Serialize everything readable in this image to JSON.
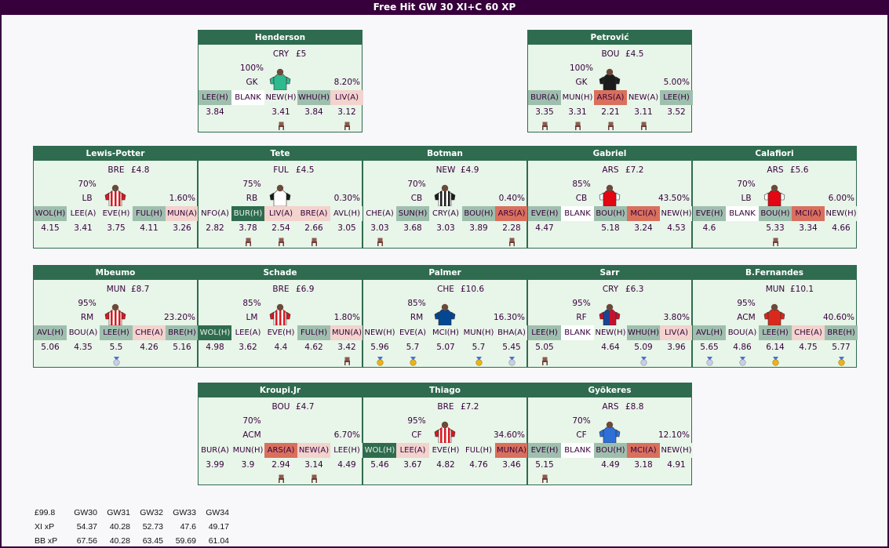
{
  "title": "Free Hit GW 30 XI+C 60 XP",
  "colors": {
    "header": "#37003c",
    "card_bg": "#e8f5e9",
    "card_header": "#2f6b4f",
    "fdr": {
      "1": "#2f6b4f",
      "2": "#9fbfae",
      "3": "#e8f5e9",
      "4": "#f2d3cd",
      "5": "#d8705d",
      "blank": "#ffffff"
    }
  },
  "rows": [
    {
      "players": [
        {
          "name": "Henderson",
          "club": "CRY",
          "price": "£5",
          "chance": "100%",
          "position": "GK",
          "ownership": "8.20%",
          "shirt": {
            "type": "gk",
            "main": "#2fb98f",
            "sleeve": "#2fb98f",
            "stripe": "#2fb98f"
          },
          "fixtures": [
            {
              "t": "LEE(H)",
              "d": "2"
            },
            {
              "t": "BLANK",
              "d": "blank"
            },
            {
              "t": "NEW(H)",
              "d": "3"
            },
            {
              "t": "WHU(H)",
              "d": "2"
            },
            {
              "t": "LIV(A)",
              "d": "4"
            }
          ],
          "xp": [
            "3.84",
            "",
            "3.41",
            "3.84",
            "3.12"
          ],
          "icons": [
            "",
            "",
            "chair-icon",
            "",
            "chair-icon"
          ]
        },
        {
          "name": "Petrović",
          "club": "BOU",
          "price": "£4.5",
          "chance": "100%",
          "position": "GK",
          "ownership": "5.00%",
          "shirt": {
            "type": "gk",
            "main": "#1c1c1c",
            "sleeve": "#1c1c1c",
            "stripe": "#1c1c1c"
          },
          "fixtures": [
            {
              "t": "BUR(A)",
              "d": "2"
            },
            {
              "t": "MUN(H)",
              "d": "3"
            },
            {
              "t": "ARS(A)",
              "d": "5"
            },
            {
              "t": "NEW(A)",
              "d": "3"
            },
            {
              "t": "LEE(H)",
              "d": "2"
            }
          ],
          "xp": [
            "3.35",
            "3.31",
            "2.21",
            "3.11",
            "3.52"
          ],
          "icons": [
            "chair-icon",
            "chair-icon",
            "chair-icon",
            "chair-icon",
            ""
          ]
        }
      ]
    },
    {
      "players": [
        {
          "name": "Lewis-Potter",
          "club": "BRE",
          "price": "£4.8",
          "chance": "70%",
          "position": "LB",
          "ownership": "1.60%",
          "shirt": {
            "type": "stripes",
            "main": "#ffffff",
            "sleeve": "#d71920",
            "stripe": "#d71920"
          },
          "fixtures": [
            {
              "t": "WOL(H)",
              "d": "2"
            },
            {
              "t": "LEE(A)",
              "d": "3"
            },
            {
              "t": "EVE(H)",
              "d": "3"
            },
            {
              "t": "FUL(H)",
              "d": "2"
            },
            {
              "t": "MUN(A)",
              "d": "4"
            }
          ],
          "xp": [
            "4.15",
            "3.41",
            "3.75",
            "4.11",
            "3.26"
          ],
          "icons": [
            "",
            "",
            "",
            "",
            ""
          ]
        },
        {
          "name": "Tete",
          "club": "FUL",
          "price": "£4.5",
          "chance": "75%",
          "position": "RB",
          "ownership": "0.30%",
          "shirt": {
            "type": "plain",
            "main": "#ffffff",
            "sleeve": "#1c1c1c",
            "stripe": "#1c1c1c"
          },
          "fixtures": [
            {
              "t": "NFO(A)",
              "d": "3"
            },
            {
              "t": "BUR(H)",
              "d": "1"
            },
            {
              "t": "LIV(A)",
              "d": "4"
            },
            {
              "t": "BRE(A)",
              "d": "4"
            },
            {
              "t": "AVL(H)",
              "d": "3"
            }
          ],
          "xp": [
            "2.82",
            "3.78",
            "2.54",
            "2.66",
            "3.05"
          ],
          "icons": [
            "",
            "chair-icon",
            "chair-icon",
            "chair-icon",
            ""
          ]
        },
        {
          "name": "Botman",
          "club": "NEW",
          "price": "£4.9",
          "chance": "70%",
          "position": "CB",
          "ownership": "0.40%",
          "shirt": {
            "type": "stripes",
            "main": "#ffffff",
            "sleeve": "#1c1c1c",
            "stripe": "#1c1c1c"
          },
          "fixtures": [
            {
              "t": "CHE(A)",
              "d": "3"
            },
            {
              "t": "SUN(H)",
              "d": "2"
            },
            {
              "t": "CRY(A)",
              "d": "3"
            },
            {
              "t": "BOU(H)",
              "d": "2"
            },
            {
              "t": "ARS(A)",
              "d": "5"
            }
          ],
          "xp": [
            "3.03",
            "3.68",
            "3.03",
            "3.89",
            "2.28"
          ],
          "icons": [
            "chair-icon",
            "",
            "",
            "",
            "chair-icon"
          ]
        },
        {
          "name": "Gabriel",
          "club": "ARS",
          "price": "£7.2",
          "chance": "85%",
          "position": "CB",
          "ownership": "43.50%",
          "shirt": {
            "type": "plain",
            "main": "#e30613",
            "sleeve": "#ffffff",
            "stripe": "#ffffff"
          },
          "fixtures": [
            {
              "t": "EVE(H)",
              "d": "2"
            },
            {
              "t": "BLANK",
              "d": "blank"
            },
            {
              "t": "BOU(H)",
              "d": "2"
            },
            {
              "t": "MCI(A)",
              "d": "5"
            },
            {
              "t": "NEW(H)",
              "d": "3"
            }
          ],
          "xp": [
            "4.47",
            "",
            "5.18",
            "3.24",
            "4.53"
          ],
          "icons": [
            "",
            "",
            "",
            "",
            ""
          ]
        },
        {
          "name": "Calafiori",
          "club": "ARS",
          "price": "£5.6",
          "chance": "70%",
          "position": "LB",
          "ownership": "6.00%",
          "shirt": {
            "type": "plain",
            "main": "#e30613",
            "sleeve": "#ffffff",
            "stripe": "#ffffff"
          },
          "fixtures": [
            {
              "t": "EVE(H)",
              "d": "2"
            },
            {
              "t": "BLANK",
              "d": "blank"
            },
            {
              "t": "BOU(H)",
              "d": "2"
            },
            {
              "t": "MCI(A)",
              "d": "5"
            },
            {
              "t": "NEW(H)",
              "d": "3"
            }
          ],
          "xp": [
            "4.6",
            "",
            "5.33",
            "3.34",
            "4.66"
          ],
          "icons": [
            "",
            "",
            "chair-icon",
            "",
            ""
          ]
        }
      ]
    },
    {
      "players": [
        {
          "name": "Mbeumo",
          "club": "MUN",
          "price": "£8.7",
          "chance": "95%",
          "position": "RM",
          "ownership": "23.20%",
          "shirt": {
            "type": "stripes",
            "main": "#ffffff",
            "sleeve": "#d71920",
            "stripe": "#d71920"
          },
          "fixtures": [
            {
              "t": "AVL(H)",
              "d": "2"
            },
            {
              "t": "BOU(A)",
              "d": "3"
            },
            {
              "t": "LEE(H)",
              "d": "2"
            },
            {
              "t": "CHE(A)",
              "d": "4"
            },
            {
              "t": "BRE(H)",
              "d": "2"
            }
          ],
          "xp": [
            "5.06",
            "4.35",
            "5.5",
            "4.26",
            "5.16"
          ],
          "icons": [
            "",
            "",
            "medal-silver-icon",
            "",
            ""
          ]
        },
        {
          "name": "Schade",
          "club": "BRE",
          "price": "£6.9",
          "chance": "85%",
          "position": "LM",
          "ownership": "1.80%",
          "shirt": {
            "type": "stripes",
            "main": "#ffffff",
            "sleeve": "#d71920",
            "stripe": "#d71920"
          },
          "fixtures": [
            {
              "t": "WOL(H)",
              "d": "1"
            },
            {
              "t": "LEE(A)",
              "d": "3"
            },
            {
              "t": "EVE(H)",
              "d": "3"
            },
            {
              "t": "FUL(H)",
              "d": "2"
            },
            {
              "t": "MUN(A)",
              "d": "4"
            }
          ],
          "xp": [
            "4.98",
            "3.62",
            "4.4",
            "4.62",
            "3.42"
          ],
          "icons": [
            "",
            "",
            "",
            "",
            "chair-icon"
          ]
        },
        {
          "name": "Palmer",
          "club": "CHE",
          "price": "£10.6",
          "chance": "85%",
          "position": "RM",
          "ownership": "16.30%",
          "shirt": {
            "type": "plain",
            "main": "#034694",
            "sleeve": "#034694",
            "stripe": "#034694"
          },
          "fixtures": [
            {
              "t": "NEW(H)",
              "d": "3"
            },
            {
              "t": "EVE(A)",
              "d": "3"
            },
            {
              "t": "MCI(H)",
              "d": "3"
            },
            {
              "t": "MUN(H)",
              "d": "3"
            },
            {
              "t": "BHA(A)",
              "d": "3"
            }
          ],
          "xp": [
            "5.96",
            "5.7",
            "5.07",
            "5.7",
            "5.45"
          ],
          "icons": [
            "medal-gold-icon",
            "medal-gold-icon",
            "",
            "medal-gold-icon",
            "medal-silver-icon"
          ]
        },
        {
          "name": "Sarr",
          "club": "CRY",
          "price": "£6.3",
          "chance": "95%",
          "position": "RF",
          "ownership": "3.80%",
          "shirt": {
            "type": "halves",
            "main": "#1b458f",
            "sleeve": "#c4122e",
            "stripe": "#c4122e"
          },
          "fixtures": [
            {
              "t": "LEE(H)",
              "d": "2"
            },
            {
              "t": "BLANK",
              "d": "blank"
            },
            {
              "t": "NEW(H)",
              "d": "3"
            },
            {
              "t": "WHU(H)",
              "d": "2"
            },
            {
              "t": "LIV(A)",
              "d": "4"
            }
          ],
          "xp": [
            "5.05",
            "",
            "4.64",
            "5.09",
            "3.96"
          ],
          "icons": [
            "chair-icon",
            "",
            "",
            "medal-silver-icon",
            ""
          ]
        },
        {
          "name": "B.Fernandes",
          "club": "MUN",
          "price": "£10.1",
          "chance": "95%",
          "position": "ACM",
          "ownership": "40.60%",
          "shirt": {
            "type": "plain",
            "main": "#da291c",
            "sleeve": "#da291c",
            "stripe": "#da291c"
          },
          "fixtures": [
            {
              "t": "AVL(H)",
              "d": "2"
            },
            {
              "t": "BOU(A)",
              "d": "3"
            },
            {
              "t": "LEE(H)",
              "d": "2"
            },
            {
              "t": "CHE(A)",
              "d": "4"
            },
            {
              "t": "BRE(H)",
              "d": "2"
            }
          ],
          "xp": [
            "5.65",
            "4.86",
            "6.14",
            "4.75",
            "5.77"
          ],
          "icons": [
            "medal-silver-icon",
            "medal-silver-icon",
            "medal-gold-icon",
            "",
            "medal-gold-icon"
          ]
        }
      ]
    },
    {
      "players": [
        {
          "name": "Kroupi.Jr",
          "club": "BOU",
          "price": "£4.7",
          "chance": "70%",
          "position": "ACM",
          "ownership": "6.70%",
          "shirt": {
            "type": "none",
            "main": "#e8f5e9",
            "sleeve": "#e8f5e9",
            "stripe": "#e8f5e9"
          },
          "fixtures": [
            {
              "t": "BUR(A)",
              "d": "3"
            },
            {
              "t": "MUN(H)",
              "d": "3"
            },
            {
              "t": "ARS(A)",
              "d": "5"
            },
            {
              "t": "NEW(A)",
              "d": "4"
            },
            {
              "t": "LEE(H)",
              "d": "3"
            }
          ],
          "xp": [
            "3.99",
            "3.9",
            "2.94",
            "3.14",
            "4.49"
          ],
          "icons": [
            "",
            "",
            "chair-icon",
            "chair-icon",
            ""
          ]
        },
        {
          "name": "Thiago",
          "club": "BRE",
          "price": "£7.2",
          "chance": "95%",
          "position": "CF",
          "ownership": "34.60%",
          "shirt": {
            "type": "stripes",
            "main": "#ffffff",
            "sleeve": "#d71920",
            "stripe": "#d71920"
          },
          "fixtures": [
            {
              "t": "WOL(H)",
              "d": "1"
            },
            {
              "t": "LEE(A)",
              "d": "4"
            },
            {
              "t": "EVE(H)",
              "d": "3"
            },
            {
              "t": "FUL(H)",
              "d": "3"
            },
            {
              "t": "MUN(A)",
              "d": "5"
            }
          ],
          "xp": [
            "5.46",
            "3.67",
            "4.82",
            "4.76",
            "3.46"
          ],
          "icons": [
            "",
            "",
            "",
            "",
            ""
          ]
        },
        {
          "name": "Gyökeres",
          "club": "ARS",
          "price": "£8.8",
          "chance": "70%",
          "position": "CF",
          "ownership": "12.10%",
          "shirt": {
            "type": "plain",
            "main": "#2e6fd8",
            "sleeve": "#2e6fd8",
            "stripe": "#2e6fd8"
          },
          "fixtures": [
            {
              "t": "EVE(H)",
              "d": "2"
            },
            {
              "t": "BLANK",
              "d": "blank"
            },
            {
              "t": "BOU(H)",
              "d": "2"
            },
            {
              "t": "MCI(A)",
              "d": "5"
            },
            {
              "t": "NEW(H)",
              "d": "3"
            }
          ],
          "xp": [
            "5.15",
            "",
            "4.49",
            "3.18",
            "4.91"
          ],
          "icons": [
            "chair-icon",
            "",
            "",
            "",
            ""
          ]
        }
      ]
    }
  ],
  "summary": {
    "header": [
      "£99.8",
      "GW30",
      "GW31",
      "GW32",
      "GW33",
      "GW34"
    ],
    "rows": [
      [
        "XI xP",
        "54.37",
        "40.28",
        "52.73",
        "47.6",
        "49.17"
      ],
      [
        "BB xP",
        "67.56",
        "40.28",
        "63.45",
        "59.69",
        "61.04"
      ]
    ]
  }
}
